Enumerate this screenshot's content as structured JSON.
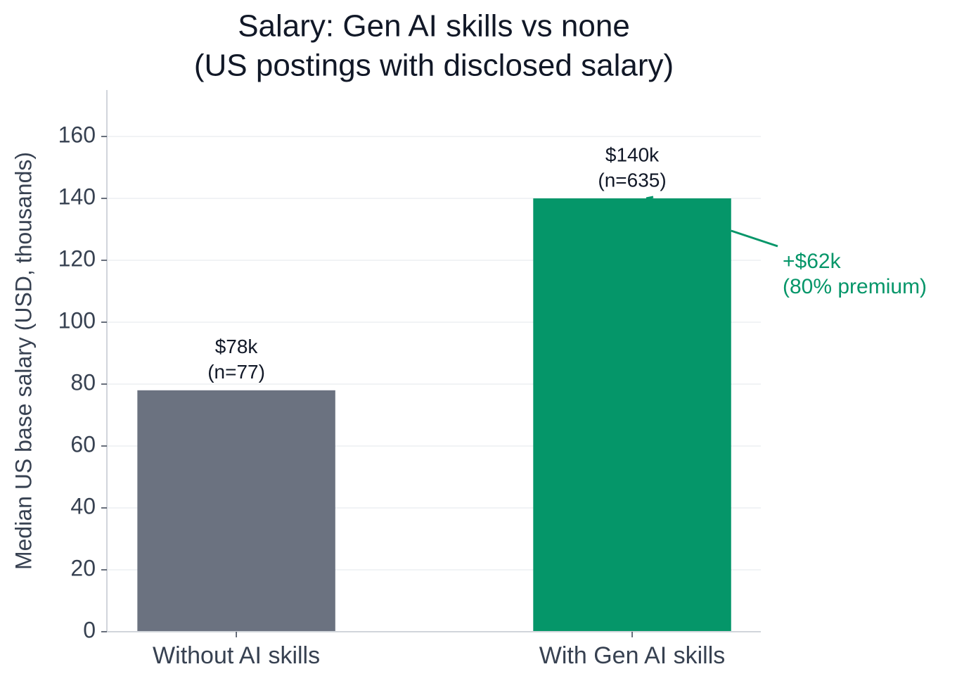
{
  "chart_data": {
    "type": "bar",
    "title": "Salary: Gen AI skills vs none",
    "subtitle": "(US postings with disclosed salary)",
    "y_label": "Median US base salary (USD, thousands)",
    "categories": [
      "Without AI skills",
      "With Gen AI skills"
    ],
    "values": [
      78,
      140
    ],
    "value_labels": [
      "$78k",
      "$140k"
    ],
    "count_labels": [
      "(n=77)",
      "(n=635)"
    ],
    "colors": [
      "#6b7280",
      "#059669"
    ],
    "ylim": [
      0,
      175
    ],
    "yticks": [
      0,
      20,
      40,
      60,
      80,
      100,
      120,
      140,
      160
    ],
    "grid": true,
    "annotation": {
      "lines": [
        "+$62k",
        "(80% premium)"
      ],
      "color": "#059669"
    }
  }
}
